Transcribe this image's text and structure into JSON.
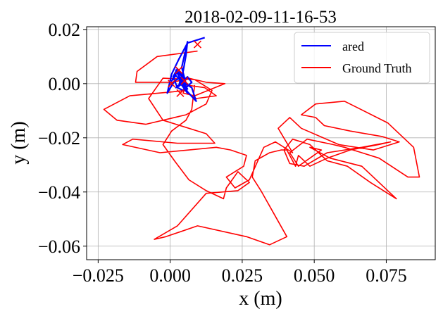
{
  "chart_data": {
    "type": "line",
    "title": "2018-02-09-11-16-53",
    "xlabel": "x (m)",
    "ylabel": "y (m)",
    "xlim": [
      -0.029,
      0.092
    ],
    "ylim": [
      -0.065,
      0.021
    ],
    "xticks": [
      -0.025,
      0.0,
      0.025,
      0.05,
      0.075
    ],
    "xtick_labels": [
      "−0.025",
      "0.000",
      "0.025",
      "0.050",
      "0.075"
    ],
    "yticks": [
      -0.06,
      -0.04,
      -0.02,
      0.0,
      0.02
    ],
    "ytick_labels": [
      "−0.06",
      "−0.04",
      "−0.02",
      "0.00",
      "0.02"
    ],
    "grid": true,
    "legend_position": "top-right",
    "series": [
      {
        "name": "ared",
        "color": "#0000ff",
        "x": [
          0.012,
          0.006,
          0.003,
          0.0005,
          -0.001,
          0.0015,
          0.004,
          0.003,
          0.0035,
          0.002,
          0.006,
          0.009,
          0.0075,
          0.0045,
          0.006,
          0.002,
          0.0005,
          0.0025,
          0.0045,
          0.0035,
          0.0055,
          0.0045,
          0.0025,
          0.001,
          0.0025,
          0.0055,
          0.0035,
          0.002,
          0.006,
          0.0075,
          0.0055,
          0.0035,
          0.006,
          0.004,
          0.0035,
          0.0045,
          0.0055,
          0.006,
          0.004,
          0.0055
        ],
        "y": [
          0.017,
          0.015,
          0.009,
          0.0035,
          -0.0035,
          0.001,
          0.0025,
          -0.001,
          0.0015,
          0.005,
          -0.003,
          -0.0065,
          -0.0015,
          0.0005,
          -0.002,
          0.003,
          0.001,
          0.0045,
          0.002,
          0.0005,
          -0.001,
          -0.0025,
          -0.0015,
          0.0025,
          0.0055,
          0.0015,
          -0.0005,
          -0.0015,
          0.0025,
          0.0005,
          -0.0015,
          0.0005,
          -0.0035,
          -0.0005,
          0.0015,
          0.0045,
          0.0105,
          0.0155,
          0.006,
          0.0
        ]
      },
      {
        "name": "Ground Truth",
        "color": "#ff0000",
        "x": [
          0.0095,
          -0.0045,
          -0.0115,
          -0.012,
          0.001,
          0.0065,
          0.0125,
          0.019,
          0.0085,
          0.0045,
          0.0055,
          0.012,
          0.016,
          0.009,
          0.005,
          0.001,
          -0.014,
          -0.023,
          -0.0185,
          -0.0085,
          0.0055,
          0.0125,
          0.0145,
          0.0085,
          -0.0025,
          -0.0075,
          -0.0025,
          0.0125,
          0.0155,
          0.0025,
          -0.013,
          -0.0165,
          -0.0035,
          0.016,
          0.021,
          0.0265,
          0.0255,
          0.0195,
          0.0225,
          0.0275,
          0.0325,
          0.0365,
          0.0425,
          0.0375,
          0.0415,
          0.0455,
          0.0585,
          0.0705,
          0.0795,
          0.0735,
          0.0625,
          0.0535,
          0.0505,
          0.0455,
          0.0505,
          0.0605,
          0.0755,
          0.0845,
          0.0865,
          0.0825,
          0.0725,
          0.0665,
          0.0605,
          0.0565,
          0.0475,
          0.0415,
          0.0445,
          0.0485,
          0.0525,
          0.0485,
          0.0555,
          0.0665,
          0.0785,
          0.0695,
          0.0615,
          0.0545,
          0.0485,
          0.0425,
          0.0395,
          0.0415,
          0.0465,
          0.0545,
          0.0665,
          0.0765,
          0.0725,
          0.0625,
          0.0545,
          0.0485,
          0.0445,
          0.0435,
          0.0405,
          0.0385,
          0.0345,
          0.0295,
          0.0285,
          0.0315,
          0.0405,
          0.0345,
          0.0265,
          0.0095,
          -0.0015,
          -0.0055,
          0.0025,
          0.0125,
          0.0235,
          0.0275,
          0.0235,
          0.0215,
          0.0195,
          0.0185,
          0.0125,
          0.0065,
          0.0015,
          -0.0025,
          0.0005,
          0.0055,
          0.0075,
          0.0085
        ],
        "y": [
          0.012,
          0.01,
          0.0045,
          0.0005,
          0.0005,
          0.002,
          0.0005,
          0.0,
          -0.0045,
          -0.0035,
          -0.0005,
          -0.0015,
          -0.0045,
          -0.0055,
          -0.0025,
          -0.003,
          -0.0045,
          -0.0095,
          -0.0135,
          -0.015,
          -0.0115,
          -0.0075,
          -0.0025,
          0.0015,
          0.002,
          -0.0055,
          -0.0135,
          -0.0185,
          -0.022,
          -0.022,
          -0.0205,
          -0.0225,
          -0.0255,
          -0.0235,
          -0.0245,
          -0.0265,
          -0.0305,
          -0.0345,
          -0.0385,
          -0.0355,
          -0.0235,
          -0.0215,
          -0.0255,
          -0.0165,
          -0.0125,
          -0.0165,
          -0.0225,
          -0.0245,
          -0.0215,
          -0.0195,
          -0.0175,
          -0.0155,
          -0.0125,
          -0.0115,
          -0.0075,
          -0.0065,
          -0.0145,
          -0.0235,
          -0.0345,
          -0.0345,
          -0.0275,
          -0.0255,
          -0.0235,
          -0.0225,
          -0.0205,
          -0.0255,
          -0.0305,
          -0.0275,
          -0.0245,
          -0.0235,
          -0.0275,
          -0.0305,
          -0.0425,
          -0.0365,
          -0.0305,
          -0.0285,
          -0.0225,
          -0.0205,
          -0.0245,
          -0.0295,
          -0.0305,
          -0.0255,
          -0.0235,
          -0.0215,
          -0.0225,
          -0.0245,
          -0.0275,
          -0.0305,
          -0.0265,
          -0.0305,
          -0.0245,
          -0.0245,
          -0.0255,
          -0.0285,
          -0.0345,
          -0.0395,
          -0.0565,
          -0.0595,
          -0.0565,
          -0.0525,
          -0.0565,
          -0.0575,
          -0.0525,
          -0.0405,
          -0.0395,
          -0.0365,
          -0.0325,
          -0.0355,
          -0.0385,
          -0.0425,
          -0.0395,
          -0.0355,
          -0.0285,
          -0.0225,
          -0.0175,
          -0.0135,
          -0.0095,
          -0.0005
        ]
      }
    ],
    "markers": {
      "color": "#ff0000",
      "symbol": "x",
      "points": [
        [
          0.0095,
          0.0145
        ],
        [
          0.003,
          0.005
        ],
        [
          0.0005,
          0.0
        ],
        [
          0.0035,
          -0.0035
        ],
        [
          0.005,
          0.001
        ]
      ]
    }
  }
}
